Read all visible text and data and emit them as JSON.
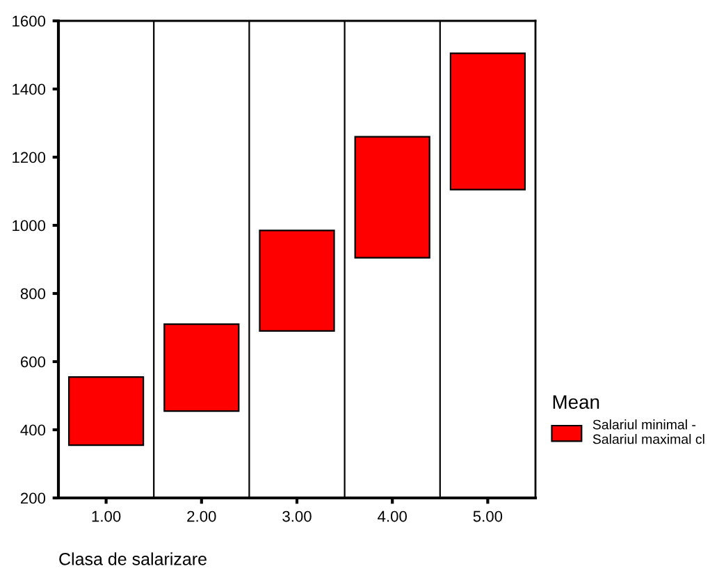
{
  "chart_data": {
    "type": "bar",
    "categories": [
      "1.00",
      "2.00",
      "3.00",
      "4.00",
      "5.00"
    ],
    "series": [
      {
        "name": "Salariul minimal - Salariul maximal cl",
        "color": "#ff0000",
        "base": [
          355,
          455,
          690,
          905,
          1105
        ],
        "values": [
          200,
          255,
          295,
          355,
          400
        ]
      }
    ],
    "xlabel": "Clasa de salarizare",
    "legend_title": "Mean",
    "ylim": [
      200,
      1600
    ],
    "yticks": [
      200,
      400,
      600,
      800,
      1000,
      1200,
      1400,
      1600
    ],
    "grid": "x",
    "legend": "right"
  }
}
